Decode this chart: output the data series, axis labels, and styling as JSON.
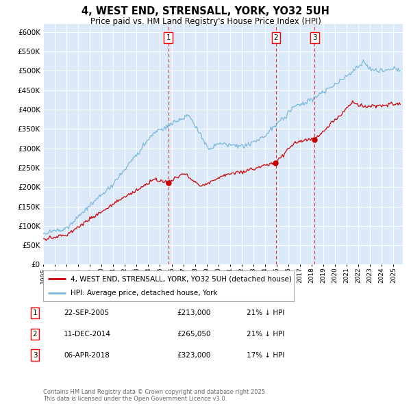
{
  "title": "4, WEST END, STRENSALL, YORK, YO32 5UH",
  "subtitle": "Price paid vs. HM Land Registry's House Price Index (HPI)",
  "plot_bg_color": "#dce9f8",
  "legend_line1": "4, WEST END, STRENSALL, YORK, YO32 5UH (detached house)",
  "legend_line2": "HPI: Average price, detached house, York",
  "transactions": [
    {
      "label": "1",
      "date_num": 2005.72,
      "price": 213000,
      "note": "22-SEP-2005",
      "pct": "21% ↓ HPI"
    },
    {
      "label": "2",
      "date_num": 2014.94,
      "price": 265050,
      "note": "11-DEC-2014",
      "pct": "21% ↓ HPI"
    },
    {
      "label": "3",
      "date_num": 2018.25,
      "price": 323000,
      "note": "06-APR-2018",
      "pct": "17% ↓ HPI"
    }
  ],
  "footer": "Contains HM Land Registry data © Crown copyright and database right 2025.\nThis data is licensed under the Open Government Licence v3.0.",
  "hpi_color": "#7ab8d9",
  "price_color": "#cc0000",
  "vline_color": "#dd3333",
  "ylim": [
    0,
    620000
  ],
  "xlim_start": 1995.0,
  "xlim_end": 2025.8
}
